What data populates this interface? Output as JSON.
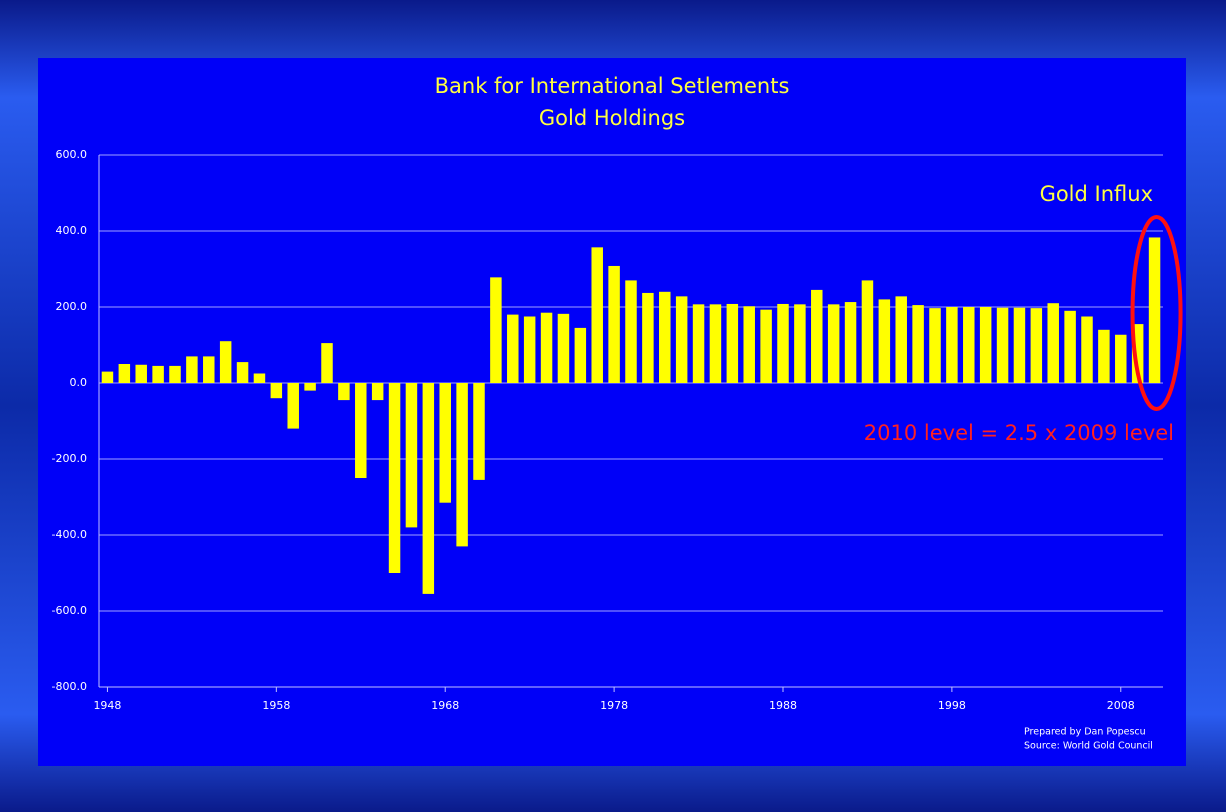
{
  "chart_data": {
    "type": "bar",
    "title": [
      "Bank for International Setlements",
      "Gold Holdings"
    ],
    "annotations": [
      "Gold Influx",
      "2010 level = 2.5 x 2009 level",
      "Prepared by Dan Popescu",
      "Source: World Gold Council"
    ],
    "categories": [
      "1948",
      null,
      null,
      null,
      null,
      null,
      null,
      null,
      null,
      null,
      "1958",
      null,
      null,
      null,
      null,
      null,
      null,
      null,
      null,
      null,
      "1968",
      null,
      null,
      null,
      null,
      null,
      null,
      null,
      null,
      null,
      "1978",
      null,
      null,
      null,
      null,
      null,
      null,
      null,
      null,
      null,
      "1988",
      null,
      null,
      null,
      null,
      null,
      null,
      null,
      null,
      null,
      "1998",
      null,
      null,
      null,
      null,
      null,
      null,
      null,
      null,
      null,
      "2008",
      null,
      null
    ],
    "values": [
      30,
      50,
      48,
      45,
      45,
      70,
      70,
      110,
      55,
      25,
      -40,
      -120,
      -20,
      105,
      -45,
      -250,
      -45,
      -500,
      -380,
      -555,
      -315,
      -430,
      -255,
      278,
      180,
      175,
      185,
      182,
      145,
      357,
      308,
      270,
      237,
      240,
      228,
      207,
      207,
      208,
      202,
      193,
      208,
      207,
      245,
      207,
      213,
      270,
      220,
      228,
      205,
      197,
      200,
      200,
      200,
      198,
      198,
      197,
      210,
      190,
      175,
      140,
      127,
      155,
      383
    ],
    "color": "#ffff00",
    "ylim": [
      -800,
      600
    ],
    "yticks": [
      {
        "value": -800,
        "label": "-800.0"
      },
      {
        "value": -600,
        "label": "-600.0"
      },
      {
        "value": -400,
        "label": "-400.0"
      },
      {
        "value": -200,
        "label": "-200.0"
      },
      {
        "value": 0,
        "label": "0.0"
      },
      {
        "value": 200,
        "label": "200.0"
      },
      {
        "value": 400,
        "label": "400.0"
      },
      {
        "value": 600,
        "label": "600.0"
      }
    ],
    "grid": true
  }
}
